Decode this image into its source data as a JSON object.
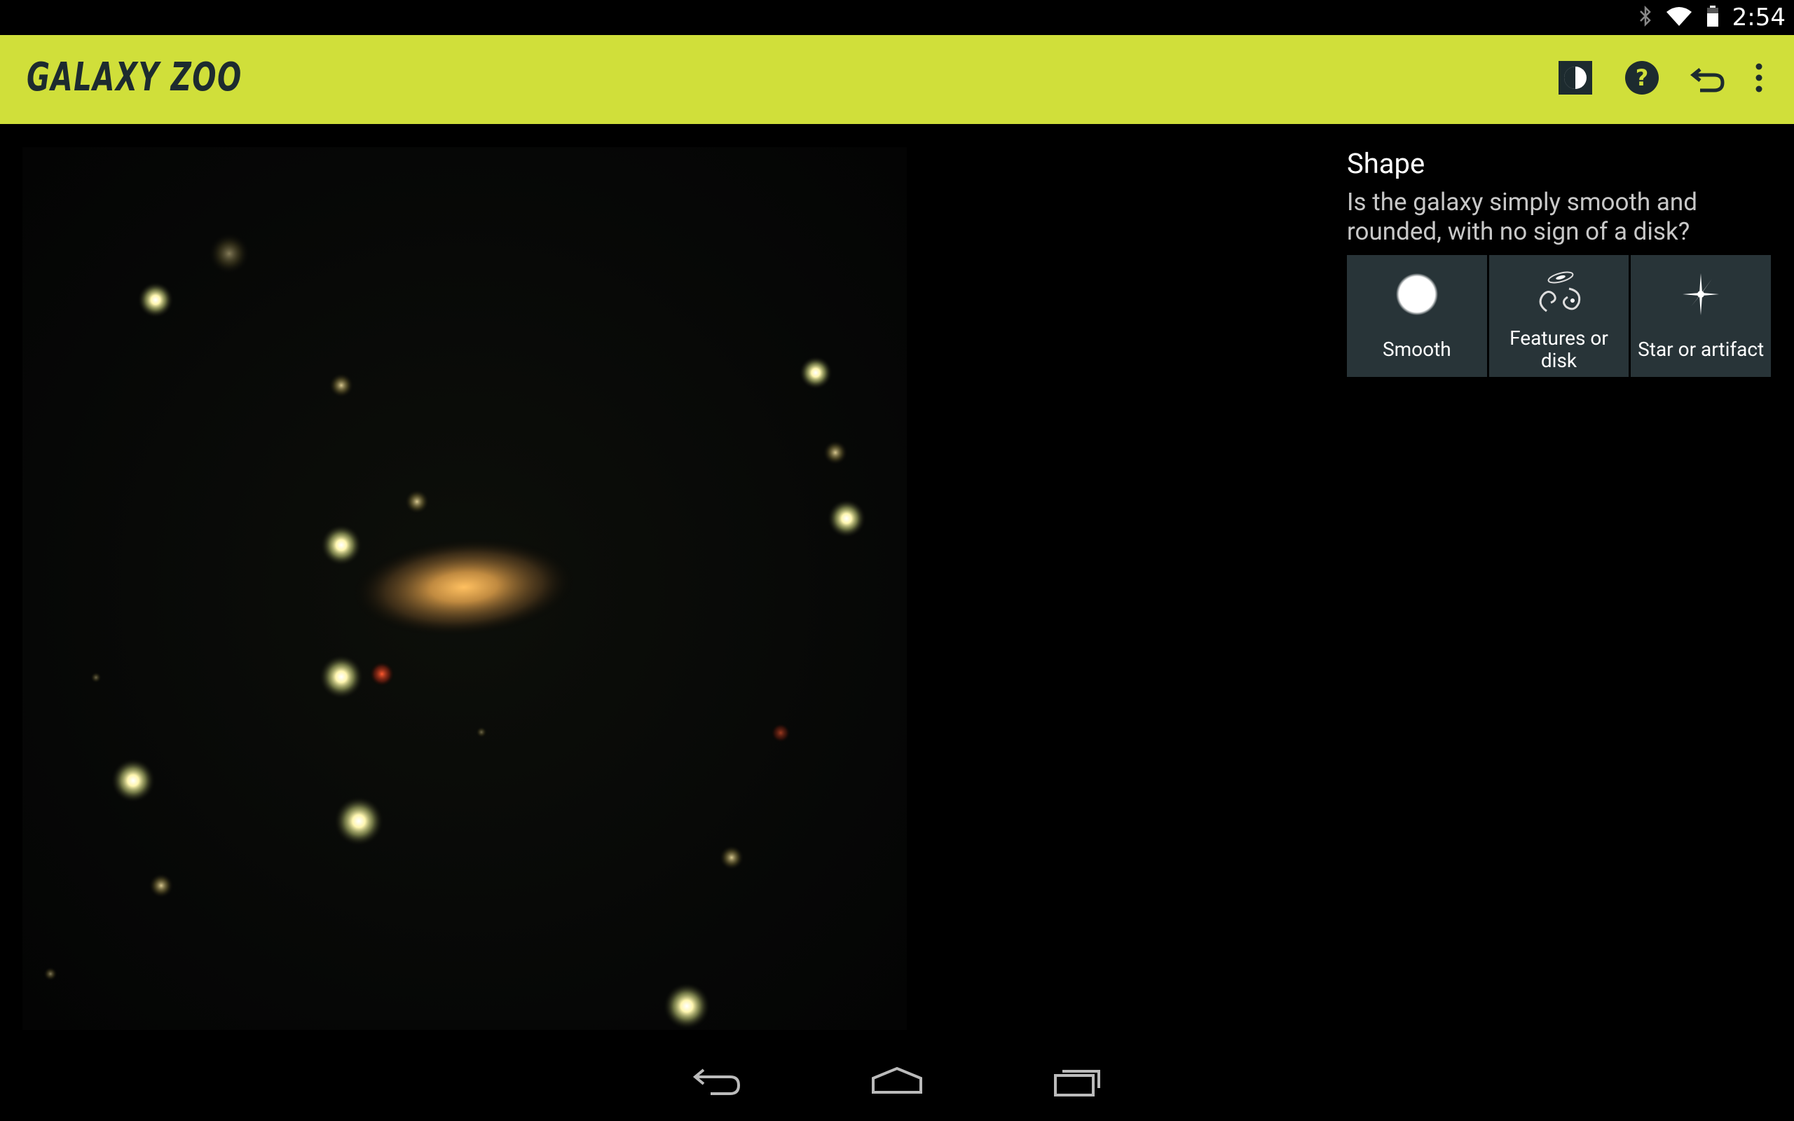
{
  "status_bar": {
    "time": "2:54",
    "icons": [
      "bluetooth-icon",
      "wifi-icon",
      "battery-icon"
    ]
  },
  "action_bar": {
    "title": "GALAXY ZOO",
    "background_color": "#d0df3a",
    "actions": [
      {
        "name": "contrast",
        "icon": "contrast-icon"
      },
      {
        "name": "help",
        "icon": "help-icon"
      },
      {
        "name": "undo",
        "icon": "undo-icon"
      },
      {
        "name": "overflow",
        "icon": "overflow-menu-icon"
      }
    ]
  },
  "question": {
    "title": "Shape",
    "text": "Is the galaxy simply smooth and rounded, with no sign of a disk?",
    "answers": [
      {
        "label": "Smooth",
        "icon": "smooth-icon"
      },
      {
        "label": "Features or disk",
        "icon": "features-or-disk-icon"
      },
      {
        "label": "Star or artifact",
        "icon": "star-or-artifact-icon"
      }
    ],
    "button_color": "#283438"
  },
  "nav_bar": {
    "buttons": [
      "back-icon",
      "home-icon",
      "recents-icon"
    ]
  }
}
